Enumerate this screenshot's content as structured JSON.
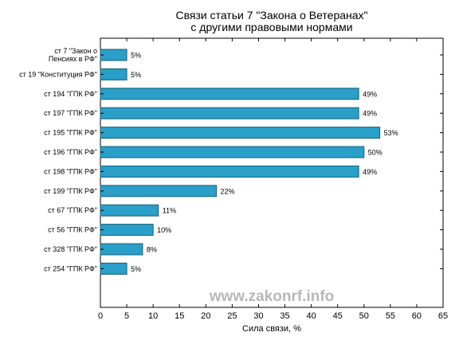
{
  "chart_data": {
    "type": "bar",
    "orientation": "horizontal",
    "title_line1": "Связи статьи 7 \"Закона о Ветеранах\"",
    "title_line2": "с другими правовыми нормами",
    "xlabel": "Сила связи, %",
    "xlim": [
      0,
      65
    ],
    "xticks": [
      0,
      5,
      10,
      15,
      20,
      25,
      30,
      35,
      40,
      45,
      50,
      55,
      60,
      65
    ],
    "categories": [
      [
        "ст 7 \"Закон о",
        "Пенсиях в РФ\""
      ],
      [
        "ст 19 \"Конституция РФ\""
      ],
      [
        "ст 194 \"ГПК РФ\""
      ],
      [
        "ст 197 \"ГПК РФ\""
      ],
      [
        "ст 195 \"ГПК РФ\""
      ],
      [
        "ст 196 \"ГПК РФ\""
      ],
      [
        "ст 198 \"ГПК РФ\""
      ],
      [
        "ст 199 \"ГПК РФ\""
      ],
      [
        "ст 67 \"ГПК РФ\""
      ],
      [
        "ст 56 \"ГПК РФ\""
      ],
      [
        "ст 328 \"ГПК РФ\""
      ],
      [
        "ст 254 \"ГПК РФ\""
      ]
    ],
    "values": [
      5,
      5,
      49,
      49,
      53,
      50,
      49,
      22,
      11,
      10,
      8,
      5
    ],
    "value_labels": [
      "5%",
      "5%",
      "49%",
      "49%",
      "53%",
      "50%",
      "49%",
      "22%",
      "11%",
      "10%",
      "8%",
      "5%"
    ],
    "bar_color": "#2a9fc7",
    "bar_edge_color": "#1a5f78",
    "grid": false,
    "watermark": "www.zakonrf.info"
  }
}
